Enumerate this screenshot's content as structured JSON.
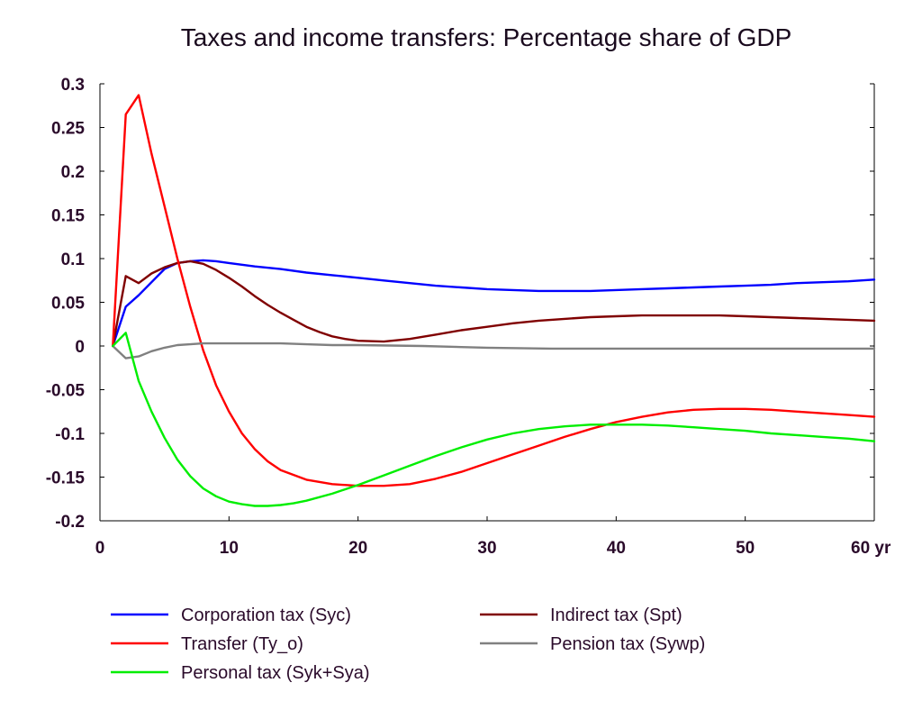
{
  "chart_data": {
    "type": "line",
    "title": "Taxes and income transfers: Percentage share of GDP",
    "xlabel": "",
    "ylabel": "",
    "xlim": [
      0,
      60
    ],
    "ylim": [
      -0.2,
      0.3
    ],
    "x_ticks": [
      0,
      10,
      20,
      30,
      40,
      50,
      60
    ],
    "x_tick_labels": [
      "0",
      "10",
      "20",
      "30",
      "40",
      "50",
      "60 yr"
    ],
    "y_ticks": [
      0.3,
      0.25,
      0.2,
      0.15,
      0.1,
      0.05,
      0,
      -0.05,
      -0.1,
      -0.15,
      -0.2
    ],
    "y_tick_labels": [
      "0.3",
      "0.25",
      "0.2",
      "0.15",
      "0.1",
      "0.05",
      "0",
      "-0.05",
      "-0.1",
      "-0.15",
      "-0.2"
    ],
    "grid": false,
    "legend_position": "bottom",
    "series": [
      {
        "name": "Corporation tax (Syc)",
        "color": "#0000ff",
        "x": [
          1,
          2,
          3,
          4,
          5,
          6,
          7,
          8,
          9,
          10,
          12,
          14,
          16,
          18,
          20,
          22,
          24,
          26,
          28,
          30,
          32,
          34,
          36,
          38,
          40,
          42,
          44,
          46,
          48,
          50,
          52,
          54,
          56,
          58,
          60
        ],
        "y": [
          0,
          0.045,
          0.058,
          0.073,
          0.088,
          0.095,
          0.097,
          0.098,
          0.097,
          0.095,
          0.091,
          0.088,
          0.084,
          0.081,
          0.078,
          0.075,
          0.072,
          0.069,
          0.067,
          0.065,
          0.064,
          0.063,
          0.063,
          0.063,
          0.064,
          0.065,
          0.066,
          0.067,
          0.068,
          0.069,
          0.07,
          0.072,
          0.073,
          0.074,
          0.076
        ]
      },
      {
        "name": "Indirect tax (Spt)",
        "color": "#800000",
        "x": [
          1,
          2,
          3,
          4,
          5,
          6,
          7,
          8,
          9,
          10,
          11,
          12,
          13,
          14,
          15,
          16,
          17,
          18,
          19,
          20,
          22,
          24,
          26,
          28,
          30,
          32,
          34,
          36,
          38,
          40,
          42,
          44,
          46,
          48,
          50,
          52,
          54,
          56,
          58,
          60
        ],
        "y": [
          0,
          0.08,
          0.072,
          0.083,
          0.09,
          0.095,
          0.097,
          0.094,
          0.087,
          0.078,
          0.068,
          0.057,
          0.047,
          0.038,
          0.03,
          0.022,
          0.016,
          0.011,
          0.008,
          0.006,
          0.005,
          0.008,
          0.013,
          0.018,
          0.022,
          0.026,
          0.029,
          0.031,
          0.033,
          0.034,
          0.035,
          0.035,
          0.035,
          0.035,
          0.034,
          0.033,
          0.032,
          0.031,
          0.03,
          0.029
        ]
      },
      {
        "name": "Transfer (Ty_o)",
        "color": "#ff0000",
        "x": [
          1,
          2,
          3,
          4,
          5,
          6,
          7,
          8,
          9,
          10,
          11,
          12,
          13,
          14,
          16,
          18,
          20,
          22,
          24,
          26,
          28,
          30,
          32,
          34,
          36,
          38,
          40,
          42,
          44,
          46,
          48,
          50,
          52,
          54,
          56,
          58,
          60
        ],
        "y": [
          0,
          0.265,
          0.287,
          0.22,
          0.16,
          0.1,
          0.045,
          -0.005,
          -0.045,
          -0.075,
          -0.1,
          -0.118,
          -0.132,
          -0.142,
          -0.153,
          -0.158,
          -0.16,
          -0.16,
          -0.158,
          -0.152,
          -0.144,
          -0.134,
          -0.124,
          -0.114,
          -0.104,
          -0.095,
          -0.087,
          -0.081,
          -0.076,
          -0.073,
          -0.072,
          -0.072,
          -0.073,
          -0.075,
          -0.077,
          -0.079,
          -0.081
        ]
      },
      {
        "name": "Pension tax (Sywp)",
        "color": "#808080",
        "x": [
          1,
          2,
          3,
          4,
          5,
          6,
          7,
          8,
          10,
          12,
          14,
          16,
          18,
          20,
          25,
          30,
          35,
          40,
          45,
          50,
          55,
          60
        ],
        "y": [
          0,
          -0.014,
          -0.012,
          -0.006,
          -0.002,
          0.001,
          0.002,
          0.003,
          0.003,
          0.003,
          0.003,
          0.002,
          0.001,
          0.001,
          0,
          -0.002,
          -0.003,
          -0.003,
          -0.003,
          -0.003,
          -0.003,
          -0.003
        ]
      },
      {
        "name": "Personal tax (Syk+Sya)",
        "color": "#00ee00",
        "x": [
          1,
          2,
          3,
          4,
          5,
          6,
          7,
          8,
          9,
          10,
          11,
          12,
          13,
          14,
          15,
          16,
          18,
          20,
          22,
          24,
          26,
          28,
          30,
          32,
          34,
          36,
          38,
          40,
          42,
          44,
          46,
          48,
          50,
          52,
          54,
          56,
          58,
          60
        ],
        "y": [
          0,
          0.015,
          -0.04,
          -0.075,
          -0.105,
          -0.13,
          -0.149,
          -0.163,
          -0.172,
          -0.178,
          -0.181,
          -0.183,
          -0.183,
          -0.182,
          -0.18,
          -0.177,
          -0.169,
          -0.159,
          -0.148,
          -0.137,
          -0.126,
          -0.116,
          -0.107,
          -0.1,
          -0.095,
          -0.092,
          -0.09,
          -0.09,
          -0.09,
          -0.091,
          -0.093,
          -0.095,
          -0.097,
          -0.1,
          -0.102,
          -0.104,
          -0.106,
          -0.109
        ]
      }
    ]
  }
}
